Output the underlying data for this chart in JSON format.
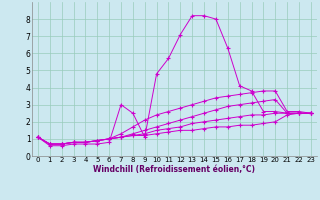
{
  "xlabel": "Windchill (Refroidissement éolien,°C)",
  "bg_color": "#cce8f0",
  "line_color": "#cc00cc",
  "marker": "+",
  "xlim": [
    -0.5,
    23.5
  ],
  "ylim": [
    0,
    9
  ],
  "xticks": [
    0,
    1,
    2,
    3,
    4,
    5,
    6,
    7,
    8,
    9,
    10,
    11,
    12,
    13,
    14,
    15,
    16,
    17,
    18,
    19,
    20,
    21,
    22,
    23
  ],
  "yticks": [
    0,
    1,
    2,
    3,
    4,
    5,
    6,
    7,
    8
  ],
  "series": [
    [
      1.1,
      0.6,
      0.6,
      0.7,
      0.7,
      0.7,
      0.8,
      3.0,
      2.5,
      1.1,
      4.8,
      5.7,
      7.1,
      8.2,
      8.2,
      8.0,
      6.3,
      4.1,
      3.8,
      2.6,
      2.6,
      2.5,
      2.5,
      2.5
    ],
    [
      1.1,
      0.7,
      0.7,
      0.8,
      0.8,
      0.9,
      1.0,
      1.3,
      1.7,
      2.1,
      2.4,
      2.6,
      2.8,
      3.0,
      3.2,
      3.4,
      3.5,
      3.6,
      3.7,
      3.8,
      3.8,
      2.6,
      2.6,
      2.5
    ],
    [
      1.1,
      0.7,
      0.7,
      0.8,
      0.8,
      0.9,
      1.0,
      1.1,
      1.3,
      1.5,
      1.7,
      1.9,
      2.1,
      2.3,
      2.5,
      2.7,
      2.9,
      3.0,
      3.1,
      3.2,
      3.3,
      2.5,
      2.5,
      2.5
    ],
    [
      1.1,
      0.7,
      0.7,
      0.8,
      0.8,
      0.9,
      1.0,
      1.1,
      1.2,
      1.3,
      1.5,
      1.6,
      1.7,
      1.9,
      2.0,
      2.1,
      2.2,
      2.3,
      2.4,
      2.4,
      2.5,
      2.5,
      2.5,
      2.5
    ],
    [
      1.1,
      0.7,
      0.7,
      0.8,
      0.8,
      0.9,
      1.0,
      1.1,
      1.2,
      1.2,
      1.3,
      1.4,
      1.5,
      1.5,
      1.6,
      1.7,
      1.7,
      1.8,
      1.8,
      1.9,
      2.0,
      2.4,
      2.5,
      2.5
    ]
  ],
  "tick_fontsize": 5,
  "xlabel_fontsize": 5.5,
  "xlabel_color": "#660066",
  "grid_color": "#99ccbb",
  "spine_color": "#888888"
}
